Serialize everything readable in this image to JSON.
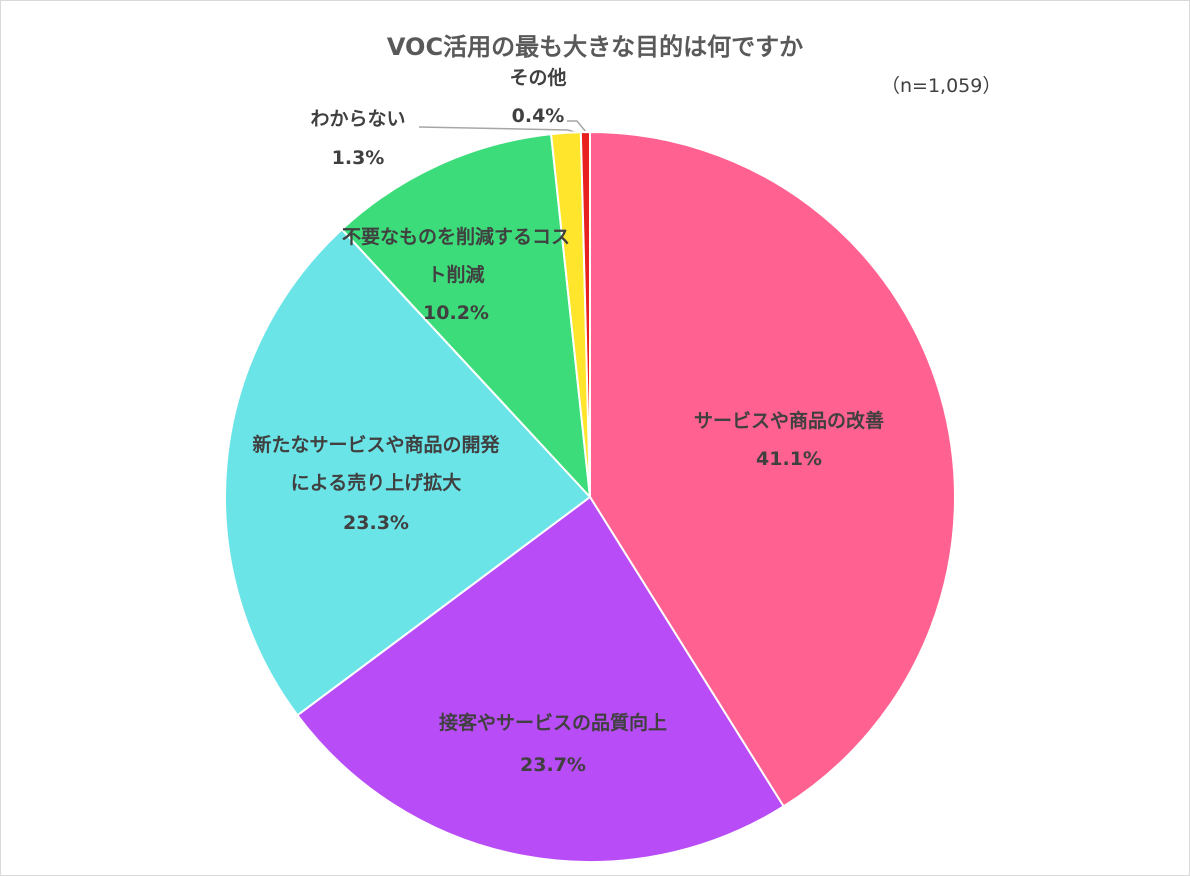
{
  "chart_data": {
    "type": "pie",
    "title": "VOC活用の最も大きな目的は何ですか",
    "subtitle": "（n=1,059）",
    "categories": [
      "サービスや商品の改善",
      "接客やサービスの品質向上",
      "新たなサービスや商品の開発による売り上げ拡大",
      "不要なものを削減するコスト削減",
      "わからない",
      "その他"
    ],
    "values": [
      41.1,
      23.7,
      23.3,
      10.2,
      1.3,
      0.4
    ],
    "value_labels": [
      "41.1%",
      "23.7%",
      "23.3%",
      "10.2%",
      "1.3%",
      "0.4%"
    ],
    "colors": [
      "#ff6291",
      "#b84cf6",
      "#6be4e8",
      "#3ddc7a",
      "#ffe62c",
      "#e8201f"
    ]
  }
}
